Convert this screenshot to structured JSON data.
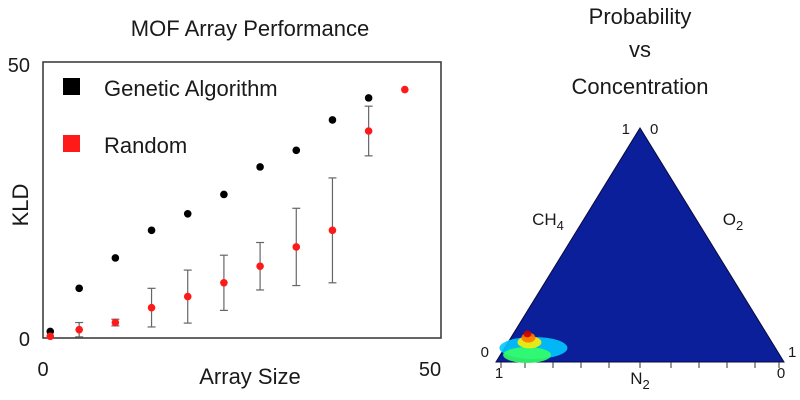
{
  "chart_data": [
    {
      "type": "scatter",
      "title": "MOF Array Performance",
      "xlabel": "Array Size",
      "ylabel": "KLD",
      "xlim": [
        0,
        55
      ],
      "ylim": [
        0,
        50
      ],
      "xticks": [
        "0",
        "50"
      ],
      "yticks": [
        "0",
        "50"
      ],
      "legend_position": "top-left",
      "series": [
        {
          "name": "Genetic Algorithm",
          "color": "#000000",
          "points": [
            {
              "x": 1,
              "y": 1.2
            },
            {
              "x": 5,
              "y": 9
            },
            {
              "x": 10,
              "y": 14.5
            },
            {
              "x": 15,
              "y": 19.5
            },
            {
              "x": 20,
              "y": 22.5
            },
            {
              "x": 25,
              "y": 26
            },
            {
              "x": 30,
              "y": 31
            },
            {
              "x": 35,
              "y": 34
            },
            {
              "x": 40,
              "y": 39.5
            },
            {
              "x": 45,
              "y": 43.5
            }
          ]
        },
        {
          "name": "Random",
          "color": "#ff1a1a",
          "points": [
            {
              "x": 1,
              "y": 0.3,
              "err": 0
            },
            {
              "x": 5,
              "y": 1.5,
              "err": 1.3
            },
            {
              "x": 10,
              "y": 2.8,
              "err": 0.6
            },
            {
              "x": 15,
              "y": 5.5,
              "err": 3.5
            },
            {
              "x": 20,
              "y": 7.5,
              "err": 4.8
            },
            {
              "x": 25,
              "y": 10,
              "err": 5
            },
            {
              "x": 30,
              "y": 13,
              "err": 4.3
            },
            {
              "x": 35,
              "y": 16.5,
              "err": 7
            },
            {
              "x": 40,
              "y": 19.5,
              "err": 9.5
            },
            {
              "x": 45,
              "y": 37.5,
              "err": 4.5
            },
            {
              "x": 50,
              "y": 45,
              "err": 0
            }
          ]
        }
      ]
    },
    {
      "type": "heatmap",
      "subtype": "ternary",
      "title": [
        "Probability",
        "vs",
        "Concentration"
      ],
      "axes": [
        "CH4",
        "O2",
        "N2"
      ],
      "corner_labels": {
        "top_left": "1",
        "top_right": "0",
        "left": "0",
        "right": "1",
        "bottom_left": "1",
        "bottom_right": "0"
      },
      "background_color": "#0a1f99",
      "hotspot": [
        {
          "ch4": 0.1,
          "o2": 0.06,
          "level": 0.25,
          "color": "#00c8ff"
        },
        {
          "ch4": 0.1,
          "o2": 0.03,
          "level": 0.45,
          "color": "#33ff66"
        },
        {
          "ch4": 0.09,
          "o2": 0.08,
          "level": 0.6,
          "color": "#ffee00"
        },
        {
          "ch4": 0.08,
          "o2": 0.1,
          "level": 0.8,
          "color": "#ff7700"
        },
        {
          "ch4": 0.07,
          "o2": 0.12,
          "level": 1.0,
          "color": "#cc0000"
        }
      ]
    }
  ]
}
